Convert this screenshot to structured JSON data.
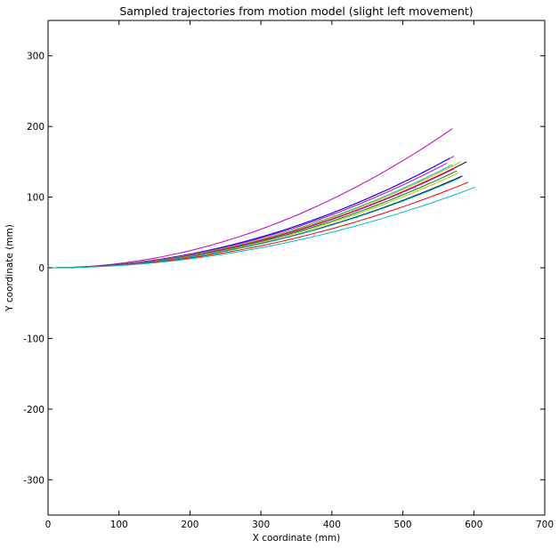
{
  "chart_data": {
    "type": "line",
    "title": "Sampled trajectories from motion model (slight left movement)",
    "xlabel": "X coordinate (mm)",
    "ylabel": "Y coordinate (mm)",
    "xlim": [
      0,
      700
    ],
    "ylim": [
      -350,
      350
    ],
    "xticks": [
      0,
      100,
      200,
      300,
      400,
      500,
      600,
      700
    ],
    "yticks": [
      -300,
      -200,
      -100,
      0,
      100,
      200,
      300
    ],
    "grid": false,
    "legend": "none",
    "series": [
      {
        "color": "#bf00bf",
        "end": [
          570,
          197
        ]
      },
      {
        "color": "#bf00bf",
        "end": [
          572,
          158
        ]
      },
      {
        "color": "#0000ff",
        "end": [
          566,
          155
        ]
      },
      {
        "color": "#bf00bf",
        "end": [
          562,
          148
        ]
      },
      {
        "color": "#00bfbf",
        "end": [
          570,
          146
        ]
      },
      {
        "color": "#000000",
        "end": [
          590,
          150
        ]
      },
      {
        "color": "#bfbf00",
        "end": [
          582,
          150
        ]
      },
      {
        "color": "#ff0000",
        "end": [
          574,
          142
        ]
      },
      {
        "color": "#bf00bf",
        "end": [
          572,
          140
        ]
      },
      {
        "color": "#008000",
        "end": [
          576,
          137
        ]
      },
      {
        "color": "#bfbf00",
        "end": [
          578,
          134
        ]
      },
      {
        "color": "#0000ff",
        "end": [
          584,
          130
        ]
      },
      {
        "color": "#000000",
        "end": [
          582,
          129
        ]
      },
      {
        "color": "#00bfbf",
        "end": [
          580,
          127
        ]
      },
      {
        "color": "#ff0000",
        "end": [
          592,
          121
        ]
      },
      {
        "color": "#00bfbf",
        "end": [
          602,
          114
        ]
      }
    ]
  }
}
